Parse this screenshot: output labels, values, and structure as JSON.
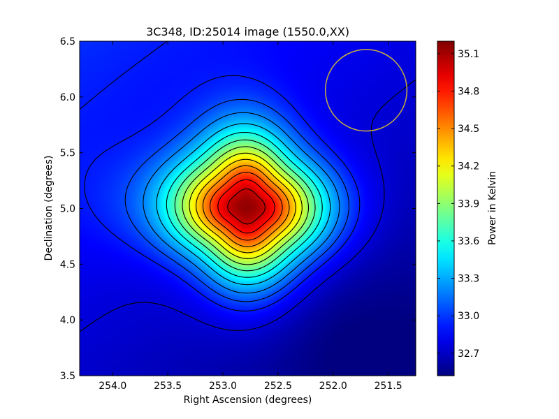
{
  "chart_data": {
    "type": "heatmap",
    "title": "3C348, ID:25014 image (1550.0,XX)",
    "xlabel": "Right Ascension (degrees)",
    "ylabel": "Declination (degrees)",
    "colorbar_label": "Power in Kelvin",
    "xlim": [
      254.3,
      251.25
    ],
    "ylim": [
      3.5,
      6.5
    ],
    "x_ticks": [
      254.0,
      253.5,
      253.0,
      252.5,
      252.0,
      251.5
    ],
    "x_tick_labels": [
      "254.0",
      "253.5",
      "253.0",
      "252.5",
      "252.0",
      "251.5"
    ],
    "y_ticks": [
      3.5,
      4.0,
      4.5,
      5.0,
      5.5,
      6.0,
      6.5
    ],
    "y_tick_labels": [
      "3.5",
      "4.0",
      "4.5",
      "5.0",
      "5.5",
      "6.0",
      "6.5"
    ],
    "colorbar_range": [
      32.52,
      35.2
    ],
    "colorbar_ticks": [
      32.7,
      33.0,
      33.3,
      33.6,
      33.9,
      34.2,
      34.5,
      34.8,
      35.1
    ],
    "colorbar_tick_labels": [
      "32.7",
      "33.0",
      "33.3",
      "33.6",
      "33.9",
      "34.2",
      "34.5",
      "34.8",
      "35.1"
    ],
    "colormap": "jet",
    "source_peak": {
      "x": 252.78,
      "y": 5.01,
      "value": 35.2
    },
    "background_level": 32.8,
    "contour_levels": [
      32.75,
      32.92,
      33.05,
      33.2,
      33.38,
      33.56,
      33.74,
      33.92,
      34.1,
      34.28,
      34.46,
      34.64,
      34.82,
      35.0
    ],
    "beam_circle": {
      "center_x": 251.7,
      "center_y": 6.06,
      "radius": 0.37,
      "color": "#c8b040"
    },
    "grid": false,
    "contour_color": "#000000"
  }
}
